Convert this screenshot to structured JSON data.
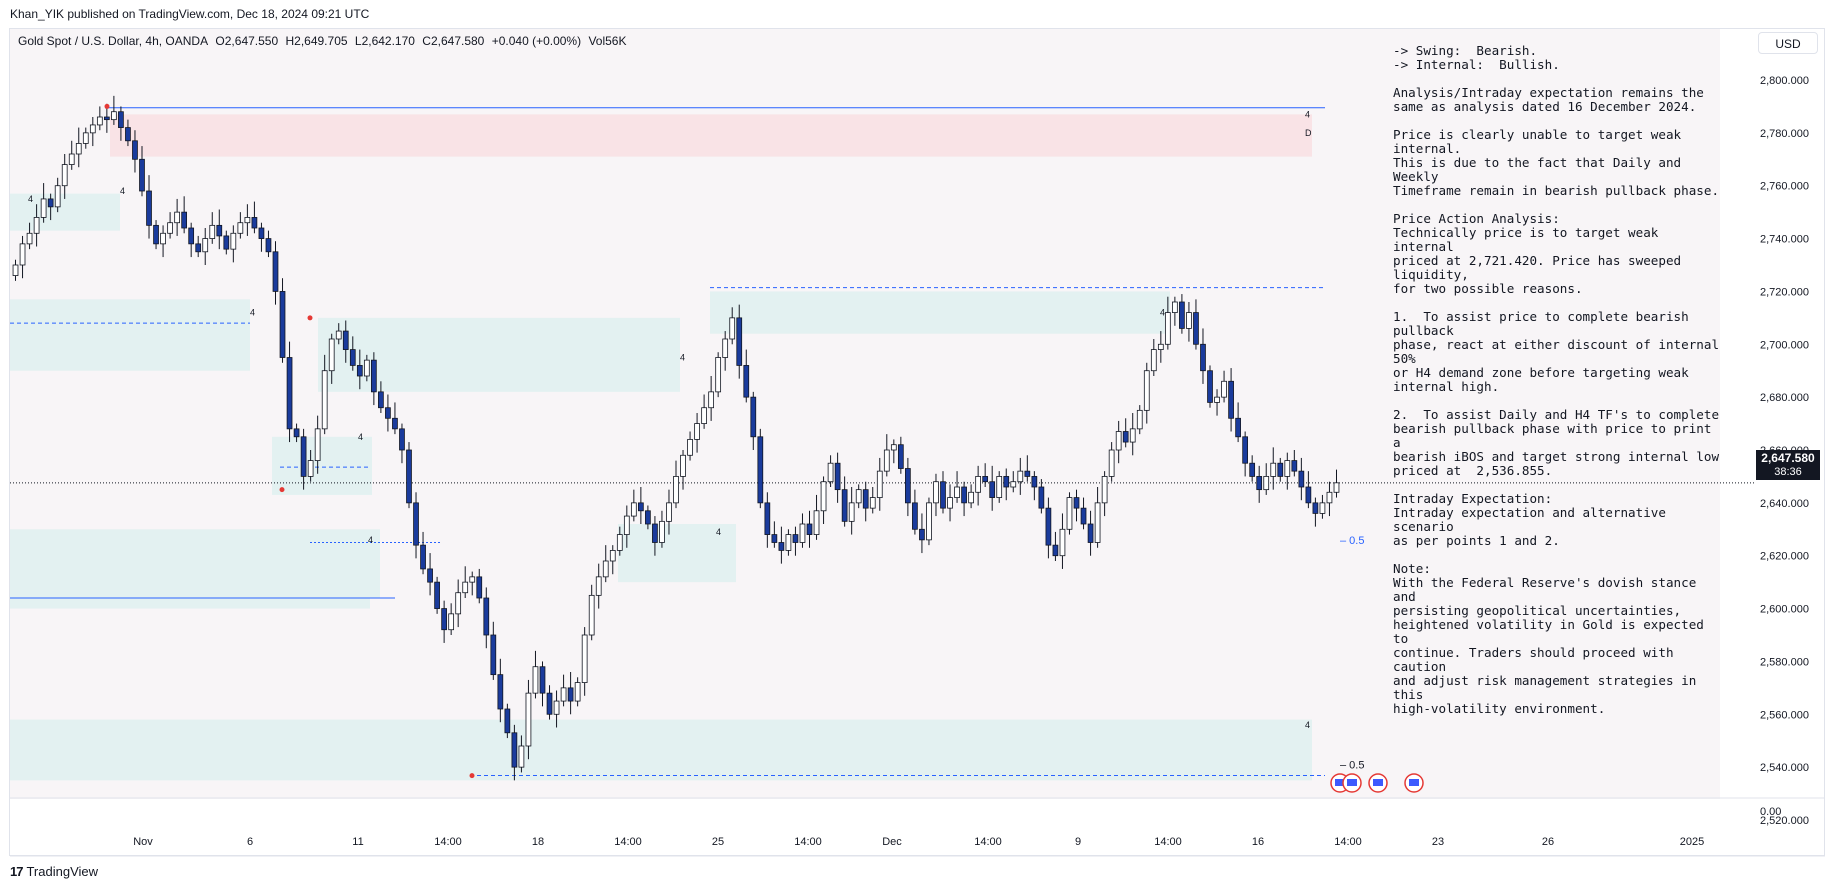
{
  "header": {
    "publisher": "Khan_YIK published on TradingView.com, Dec 18, 2024 09:21 UTC"
  },
  "legend": {
    "symbol": "Gold Spot / U.S. Dollar, 4h, OANDA",
    "open": "O2,647.550",
    "high": "H2,649.705",
    "low": "L2,642.170",
    "close": "C2,647.580",
    "change": "+0.040 (+0.00%)",
    "volume": "Vol56K"
  },
  "currency": "USD",
  "last_price": {
    "price": "2,647.580",
    "countdown": "38:36"
  },
  "price_axis": {
    "ticks": [
      "2,800.000",
      "2,780.000",
      "2,760.000",
      "2,740.000",
      "2,720.000",
      "2,700.000",
      "2,680.000",
      "2,660.000",
      "2,640.000",
      "2,620.000",
      "2,600.000",
      "2,580.000",
      "2,560.000",
      "2,540.000",
      "2,520.000"
    ],
    "zero_label": "0.00"
  },
  "time_axis": {
    "labels": [
      "Nov",
      "6",
      "11",
      "14:00",
      "18",
      "14:00",
      "25",
      "14:00",
      "Dec",
      "14:00",
      "9",
      "14:00",
      "16",
      "14:00",
      "23",
      "26",
      "2025"
    ]
  },
  "fib_labels": [
    "– 0.5",
    "– 0.5"
  ],
  "zone_marks": {
    "four": "4",
    "daily": "D"
  },
  "analysis": {
    "lines": [
      "-> Swing:  Bearish.",
      "-> Internal:  Bullish.",
      "",
      "Analysis/Intraday expectation remains the",
      "same as analysis dated 16 December 2024.",
      "",
      "Price is clearly unable to target weak internal.",
      "This is due to the fact that Daily and Weekly",
      "Timeframe remain in bearish pullback phase.",
      "",
      "Price Action Analysis:",
      "Technically price is to target weak internal",
      "priced at 2,721.420. Price has sweeped",
      "liquidity,",
      "for two possible reasons.",
      "",
      "1.  To assist price to complete bearish pullback",
      "phase, react at either discount of internal 50%",
      "or H4 demand zone before targeting weak",
      "internal high.",
      "",
      "2.  To assist Daily and H4 TF's to complete",
      "bearish pullback phase with price to print a",
      "bearish iBOS and target strong internal low",
      "priced at  2,536.855.",
      "",
      "Intraday Expectation:",
      "Intraday expectation and alternative scenario",
      "as per points 1 and 2.",
      "",
      "Note:",
      "With the Federal Reserve's dovish stance and",
      "persisting geopolitical uncertainties,",
      "heightened volatility in Gold is expected to",
      "continue. Traders should proceed with caution",
      "and adjust risk management strategies in this",
      "high-volatility environment."
    ]
  },
  "brand": {
    "logo": "17",
    "name": "TradingView"
  },
  "colors": {
    "bull": "#ffffff",
    "bear": "#1a3b9c",
    "wick": "#131722",
    "demand_zone": "#e3f1f1",
    "supply_zone": "#f9e3e6",
    "level_line": "#2962ff"
  },
  "chart_data": {
    "type": "candlestick",
    "title": "Gold Spot / U.S. Dollar, 4h, OANDA",
    "ylabel": "USD",
    "ylim": [
      2515,
      2810
    ],
    "y_ticks": [
      2800,
      2780,
      2760,
      2740,
      2720,
      2700,
      2680,
      2660,
      2640,
      2620,
      2600,
      2580,
      2560,
      2540,
      2520
    ],
    "last_price": 2647.58,
    "levels": [
      {
        "name": "weak internal high",
        "price": 2721.42,
        "style": "dashed"
      },
      {
        "name": "strong internal low",
        "price": 2536.855,
        "style": "dashed"
      },
      {
        "name": "swing high",
        "price": 2789.5,
        "style": "solid"
      },
      {
        "name": "swing low",
        "price": 2604,
        "style": "solid"
      }
    ],
    "zones": [
      {
        "type": "supply",
        "top": 2787,
        "bottom": 2771
      },
      {
        "type": "demand",
        "top": 2720,
        "bottom": 2704
      },
      {
        "type": "demand",
        "top": 2710,
        "bottom": 2682
      },
      {
        "type": "demand",
        "top": 2558,
        "bottom": 2535
      },
      {
        "type": "demand",
        "top": 2630,
        "bottom": 2604
      }
    ],
    "closes": [
      2730,
      2738,
      2742,
      2748,
      2755,
      2752,
      2760,
      2768,
      2772,
      2776,
      2780,
      2783,
      2786,
      2785,
      2788,
      2782,
      2777,
      2770,
      2758,
      2745,
      2738,
      2742,
      2746,
      2750,
      2744,
      2738,
      2735,
      2740,
      2745,
      2741,
      2736,
      2742,
      2746,
      2748,
      2744,
      2740,
      2735,
      2720,
      2695,
      2668,
      2665,
      2650,
      2656,
      2668,
      2690,
      2702,
      2705,
      2698,
      2692,
      2688,
      2694,
      2682,
      2676,
      2672,
      2668,
      2660,
      2640,
      2624,
      2615,
      2610,
      2600,
      2592,
      2598,
      2606,
      2610,
      2612,
      2604,
      2590,
      2575,
      2562,
      2553,
      2540,
      2548,
      2568,
      2578,
      2568,
      2560,
      2565,
      2570,
      2565,
      2572,
      2590,
      2605,
      2612,
      2618,
      2622,
      2628,
      2635,
      2640,
      2637,
      2632,
      2625,
      2633,
      2640,
      2650,
      2658,
      2664,
      2670,
      2676,
      2682,
      2695,
      2702,
      2710,
      2692,
      2680,
      2665,
      2640,
      2628,
      2625,
      2622,
      2628,
      2625,
      2632,
      2628,
      2637,
      2648,
      2655,
      2645,
      2633,
      2640,
      2645,
      2638,
      2642,
      2652,
      2660,
      2662,
      2653,
      2640,
      2630,
      2626,
      2640,
      2648,
      2638,
      2642,
      2646,
      2640,
      2644,
      2650,
      2648,
      2642,
      2650,
      2646,
      2648,
      2652,
      2650,
      2646,
      2638,
      2624,
      2620,
      2630,
      2642,
      2638,
      2632,
      2625,
      2640,
      2650,
      2660,
      2667,
      2663,
      2668,
      2675,
      2690,
      2698,
      2700,
      2712,
      2716,
      2706,
      2712,
      2700,
      2690,
      2678,
      2680,
      2686,
      2672,
      2665,
      2655,
      2650,
      2645,
      2650,
      2655,
      2650,
      2656,
      2652,
      2646,
      2640,
      2636,
      2640,
      2644,
      2647.58
    ]
  }
}
